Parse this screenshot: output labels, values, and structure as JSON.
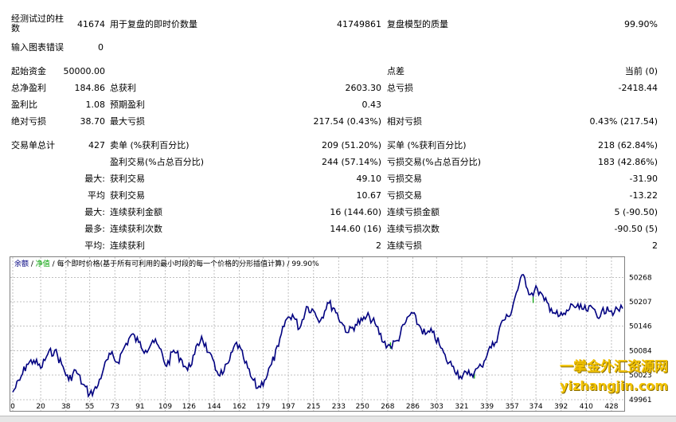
{
  "rows": {
    "bars_tested_label": "经测试过的柱\n数",
    "bars_tested_value": "41674",
    "ticks_label": "用于复盘的即时价数量",
    "ticks_value": "41749861",
    "quality_label": "复盘模型的质量",
    "quality_value": "99.90%",
    "errors_label": "输入图表错误",
    "errors_value": "0",
    "initial_deposit_label": "起始资金",
    "initial_deposit_value": "50000.00",
    "spread_label": "点差",
    "spread_value": "当前 (0)",
    "net_profit_label": "总净盈利",
    "net_profit_value": "184.86",
    "gross_profit_label": "总获利",
    "gross_profit_value": "2603.30",
    "gross_loss_label": "总亏损",
    "gross_loss_value": "-2418.44",
    "profit_factor_label": "盈利比",
    "profit_factor_value": "1.08",
    "expected_payoff_label": "预期盈利",
    "expected_payoff_value": "0.43",
    "abs_drawdown_label": "绝对亏损",
    "abs_drawdown_value": "38.70",
    "max_drawdown_label": "最大亏损",
    "max_drawdown_value": "217.54 (0.43%)",
    "rel_drawdown_label": "相对亏损",
    "rel_drawdown_value": "0.43% (217.54)",
    "total_trades_label": "交易单总计",
    "total_trades_value": "427",
    "short_label": "卖单 (%获利百分比)",
    "short_value": "209 (51.20%)",
    "long_label": "买单 (%获利百分比)",
    "long_value": "218 (62.84%)",
    "profit_trades_label": "盈利交易(%占总百分比)",
    "profit_trades_value": "244 (57.14%)",
    "loss_trades_label": "亏损交易(%占总百分比)",
    "loss_trades_value": "183 (42.86%)",
    "largest_label": "最大:",
    "largest_profit_label": "获利交易",
    "largest_profit_value": "49.10",
    "largest_loss_label": "亏损交易",
    "largest_loss_value": "-31.90",
    "average_label": "平均",
    "avg_profit_label": "获利交易",
    "avg_profit_value": "10.67",
    "avg_loss_label": "亏损交易",
    "avg_loss_value": "-13.22",
    "max_consec_label": "最大:",
    "max_consec_wins_label": "连续获利金额",
    "max_consec_wins_value": "16 (144.60)",
    "max_consec_losses_label": "连续亏损金额",
    "max_consec_losses_value": "5 (-90.50)",
    "most_label": "最多:",
    "max_consec_profit_label": "连续获利次数",
    "max_consec_profit_value": "144.60 (16)",
    "max_consec_loss_label": "连续亏损次数",
    "max_consec_loss_value": "-90.50 (5)",
    "avg_consec_label": "平均:",
    "avg_consec_wins_label": "连续获利",
    "avg_consec_wins_value": "2",
    "avg_consec_losses_label": "连续亏损",
    "avg_consec_losses_value": "2"
  },
  "legend": {
    "balance": "余额",
    "sep1": " / ",
    "equity": "净值",
    "sep2": " / ",
    "ticks_desc": "每个即时价格(基于所有可利用的最小时段的每一个价格的分形插值计算)",
    "sep3": " / ",
    "quality": "99.90%"
  },
  "watermark": {
    "cn": "一掌金外汇资源网",
    "url": "yizhangjin.com"
  },
  "colors": {
    "balance_line": "#000080",
    "equity_marker": "#00a000",
    "watermark": "#f4c400"
  },
  "chart_data": {
    "type": "line",
    "x_ticks": [
      0,
      20,
      38,
      55,
      73,
      91,
      109,
      126,
      144,
      162,
      179,
      197,
      215,
      233,
      250,
      268,
      286,
      303,
      321,
      339,
      357,
      374,
      392,
      410,
      428
    ],
    "y_ticks": [
      49961,
      50023,
      50084,
      50146,
      50207,
      50268
    ],
    "ylim": [
      49961,
      50285
    ],
    "xlim": [
      0,
      436
    ],
    "grid": true,
    "series": [
      {
        "x": [
          0,
          5,
          10,
          15,
          20,
          25,
          30,
          35,
          40,
          45,
          50,
          55,
          60,
          65,
          70,
          75,
          80,
          85,
          90,
          95,
          100,
          105,
          110,
          115,
          120,
          125,
          130,
          135,
          140,
          145,
          150,
          155,
          160,
          165,
          170,
          175,
          180,
          185,
          190,
          195,
          200,
          205,
          210,
          215,
          220,
          225,
          230,
          235,
          240,
          245,
          250,
          255,
          260,
          265,
          270,
          275,
          280,
          285,
          290,
          295,
          300,
          305,
          310,
          315,
          320,
          325,
          330,
          335,
          340,
          345,
          350,
          355,
          360,
          365,
          370,
          375,
          380,
          385,
          390,
          395,
          400,
          405,
          410,
          415,
          420,
          425,
          430,
          436
        ],
        "y": [
          49980,
          50010,
          50050,
          50060,
          50040,
          50075,
          50085,
          50050,
          50010,
          50035,
          50000,
          49975,
          49990,
          50040,
          50075,
          50055,
          50095,
          50125,
          50105,
          50085,
          50110,
          50090,
          50045,
          50085,
          50065,
          50035,
          50075,
          50120,
          50080,
          50035,
          50025,
          50060,
          50105,
          50065,
          50020,
          49990,
          50010,
          50050,
          50095,
          50160,
          50175,
          50140,
          50195,
          50185,
          50160,
          50205,
          50190,
          50155,
          50130,
          50150,
          50160,
          50170,
          50145,
          50105,
          50095,
          50110,
          50150,
          50180,
          50150,
          50125,
          50130,
          50100,
          50060,
          50045,
          50020,
          50025,
          50030,
          50045,
          50085,
          50105,
          50160,
          50170,
          50230,
          50275,
          50225,
          50240,
          50210,
          50190,
          50170,
          50175,
          50200,
          50190,
          50185,
          50190,
          50170,
          50195,
          50180,
          50190
        ]
      }
    ]
  }
}
